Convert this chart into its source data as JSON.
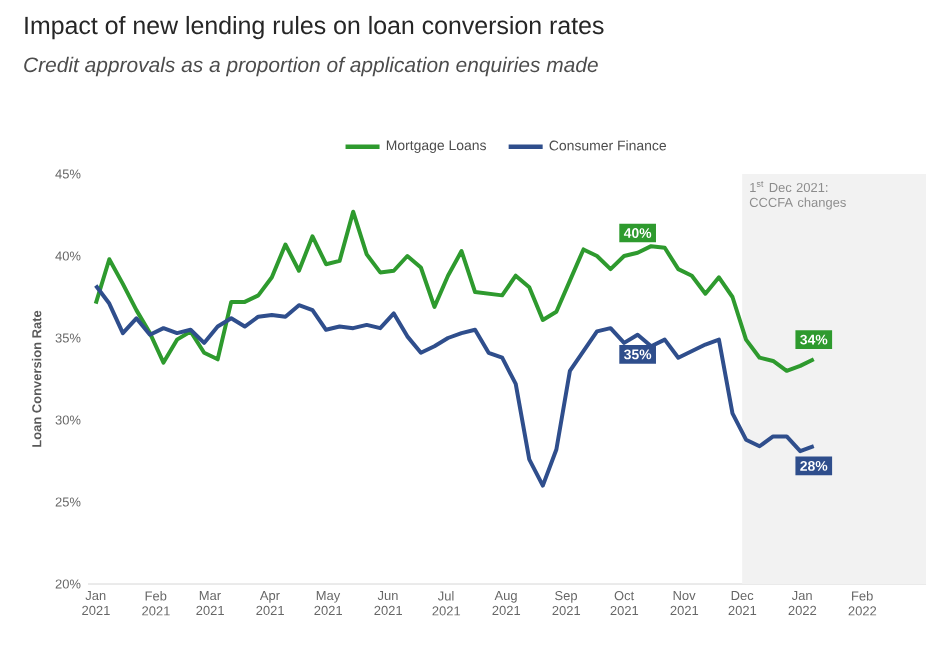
{
  "chart_data": {
    "type": "line",
    "title": "Impact of new lending rules on loan conversion rates",
    "subtitle": "Credit approvals as a proportion of application enquiries made",
    "ylabel": "Loan Conversion Rate",
    "x": [
      "2021-01-01",
      "2021-01-08",
      "2021-01-15",
      "2021-01-22",
      "2021-01-29",
      "2021-02-05",
      "2021-02-12",
      "2021-02-19",
      "2021-02-26",
      "2021-03-05",
      "2021-03-12",
      "2021-03-19",
      "2021-03-26",
      "2021-04-02",
      "2021-04-09",
      "2021-04-16",
      "2021-04-23",
      "2021-04-30",
      "2021-05-07",
      "2021-05-14",
      "2021-05-21",
      "2021-05-28",
      "2021-06-04",
      "2021-06-11",
      "2021-06-18",
      "2021-06-25",
      "2021-07-02",
      "2021-07-09",
      "2021-07-16",
      "2021-07-23",
      "2021-07-30",
      "2021-08-06",
      "2021-08-13",
      "2021-08-20",
      "2021-08-27",
      "2021-09-03",
      "2021-09-10",
      "2021-09-17",
      "2021-09-24",
      "2021-10-01",
      "2021-10-08",
      "2021-10-15",
      "2021-10-22",
      "2021-10-29",
      "2021-11-05",
      "2021-11-12",
      "2021-11-19",
      "2021-11-26",
      "2021-12-03",
      "2021-12-10",
      "2021-12-17",
      "2021-12-24",
      "2021-12-31",
      "2022-01-07"
    ],
    "series": [
      {
        "name": "Mortgage Loans",
        "color": "#2e9a2e",
        "values": [
          37.1,
          39.8,
          38.3,
          36.7,
          35.3,
          33.5,
          34.9,
          35.4,
          34.1,
          33.7,
          37.2,
          37.2,
          37.6,
          38.7,
          40.7,
          39.1,
          41.2,
          39.5,
          39.7,
          42.7,
          40.1,
          39.0,
          39.1,
          40.0,
          39.3,
          36.9,
          38.8,
          40.3,
          37.8,
          37.7,
          37.6,
          38.8,
          38.1,
          36.1,
          36.6,
          38.5,
          40.4,
          40.0,
          39.2,
          40.0,
          40.2,
          40.6,
          40.5,
          39.2,
          38.8,
          37.7,
          38.7,
          37.5,
          34.9,
          33.8,
          33.6,
          33.0,
          33.3,
          33.7
        ],
        "value_labels": [
          null,
          null,
          null,
          null,
          null,
          null,
          null,
          null,
          null,
          null,
          null,
          null,
          null,
          null,
          null,
          null,
          null,
          null,
          null,
          null,
          null,
          null,
          null,
          null,
          null,
          null,
          null,
          null,
          null,
          null,
          null,
          null,
          null,
          null,
          null,
          null,
          null,
          null,
          null,
          null,
          "40%",
          null,
          null,
          null,
          null,
          null,
          null,
          null,
          null,
          null,
          null,
          null,
          null,
          "34%"
        ]
      },
      {
        "name": "Consumer Finance",
        "color": "#2f4e8c",
        "values": [
          38.2,
          37.1,
          35.3,
          36.2,
          35.2,
          35.6,
          35.3,
          35.5,
          34.7,
          35.7,
          36.2,
          35.7,
          36.3,
          36.4,
          36.3,
          37.0,
          36.7,
          35.5,
          35.7,
          35.6,
          35.8,
          35.6,
          36.5,
          35.1,
          34.1,
          34.5,
          35.0,
          35.3,
          35.5,
          34.1,
          33.8,
          32.2,
          27.6,
          26.0,
          28.2,
          33.0,
          34.2,
          35.4,
          35.6,
          34.7,
          35.2,
          34.5,
          34.9,
          33.8,
          34.2,
          34.6,
          34.9,
          30.4,
          28.8,
          28.4,
          29.0,
          29.0,
          28.1,
          28.4
        ],
        "value_labels": [
          null,
          null,
          null,
          null,
          null,
          null,
          null,
          null,
          null,
          null,
          null,
          null,
          null,
          null,
          null,
          null,
          null,
          null,
          null,
          null,
          null,
          null,
          null,
          null,
          null,
          null,
          null,
          null,
          null,
          null,
          null,
          null,
          null,
          null,
          null,
          null,
          null,
          null,
          null,
          null,
          "35%",
          null,
          null,
          null,
          null,
          null,
          null,
          null,
          null,
          null,
          null,
          null,
          null,
          "28%"
        ]
      }
    ],
    "xlim": [
      "2020-12-28",
      "2022-03-06"
    ],
    "xticks": [
      {
        "value": "2021-01-01",
        "label": "Jan 2021"
      },
      {
        "value": "2021-02-01",
        "label": "Feb 2021"
      },
      {
        "value": "2021-03-01",
        "label": "Mar 2021"
      },
      {
        "value": "2021-04-01",
        "label": "Apr 2021"
      },
      {
        "value": "2021-05-01",
        "label": "May 2021"
      },
      {
        "value": "2021-06-01",
        "label": "Jun 2021"
      },
      {
        "value": "2021-07-01",
        "label": "Jul 2021"
      },
      {
        "value": "2021-08-01",
        "label": "Aug 2021"
      },
      {
        "value": "2021-09-01",
        "label": "Sep 2021"
      },
      {
        "value": "2021-10-01",
        "label": "Oct 2021"
      },
      {
        "value": "2021-11-01",
        "label": "Nov 2021"
      },
      {
        "value": "2021-12-01",
        "label": "Dec 2021"
      },
      {
        "value": "2022-01-01",
        "label": "Jan 2022"
      },
      {
        "value": "2022-02-01",
        "label": "Feb 2022"
      }
    ],
    "ylim": [
      20,
      45
    ],
    "yticks": [
      {
        "value": 20,
        "label": "20%"
      },
      {
        "value": 25,
        "label": "25%"
      },
      {
        "value": 30,
        "label": "30%"
      },
      {
        "value": 35,
        "label": "35%"
      },
      {
        "value": 40,
        "label": "40%"
      },
      {
        "value": 45,
        "label": "45%"
      }
    ],
    "bands": [
      {
        "axis": "x",
        "from": "2021-12-01",
        "to": "2022-03-06",
        "label": "1$^{st}$ Dec 2021: CCCFA changes",
        "color": "#f2f2f2"
      }
    ],
    "legend": "top"
  }
}
